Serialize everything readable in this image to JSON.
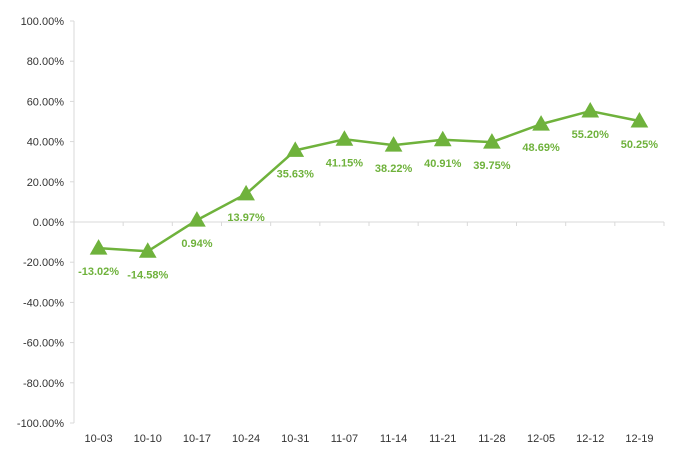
{
  "chart_data": {
    "type": "line",
    "categories": [
      "10-03",
      "10-10",
      "10-17",
      "10-24",
      "10-31",
      "11-07",
      "11-14",
      "11-21",
      "11-28",
      "12-05",
      "12-12",
      "12-19"
    ],
    "series": [
      {
        "values": [
          -13.02,
          -14.58,
          0.94,
          13.97,
          35.63,
          41.15,
          38.22,
          40.91,
          39.75,
          48.69,
          55.2,
          50.25
        ],
        "labels": [
          "-13.02%",
          "-14.58%",
          "0.94%",
          "13.97%",
          "35.63%",
          "41.15%",
          "38.22%",
          "40.91%",
          "39.75%",
          "48.69%",
          "55.20%",
          "50.25%"
        ],
        "color": "#6fb23c",
        "marker": "triangle"
      }
    ],
    "y_ticks": [
      100,
      80,
      60,
      40,
      20,
      0,
      -20,
      -40,
      -60,
      -80,
      -100
    ],
    "y_tick_labels": [
      "100.00%",
      "80.00%",
      "60.00%",
      "40.00%",
      "20.00%",
      "0.00%",
      "-20.00%",
      "-40.00%",
      "-60.00%",
      "-80.00%",
      "-100.00%"
    ],
    "ylim": [
      -100,
      100
    ],
    "title": "",
    "xlabel": "",
    "ylabel": "",
    "grid": false,
    "legend": "none",
    "axis_color": "#d9d9d9",
    "text_color": "#333333"
  }
}
